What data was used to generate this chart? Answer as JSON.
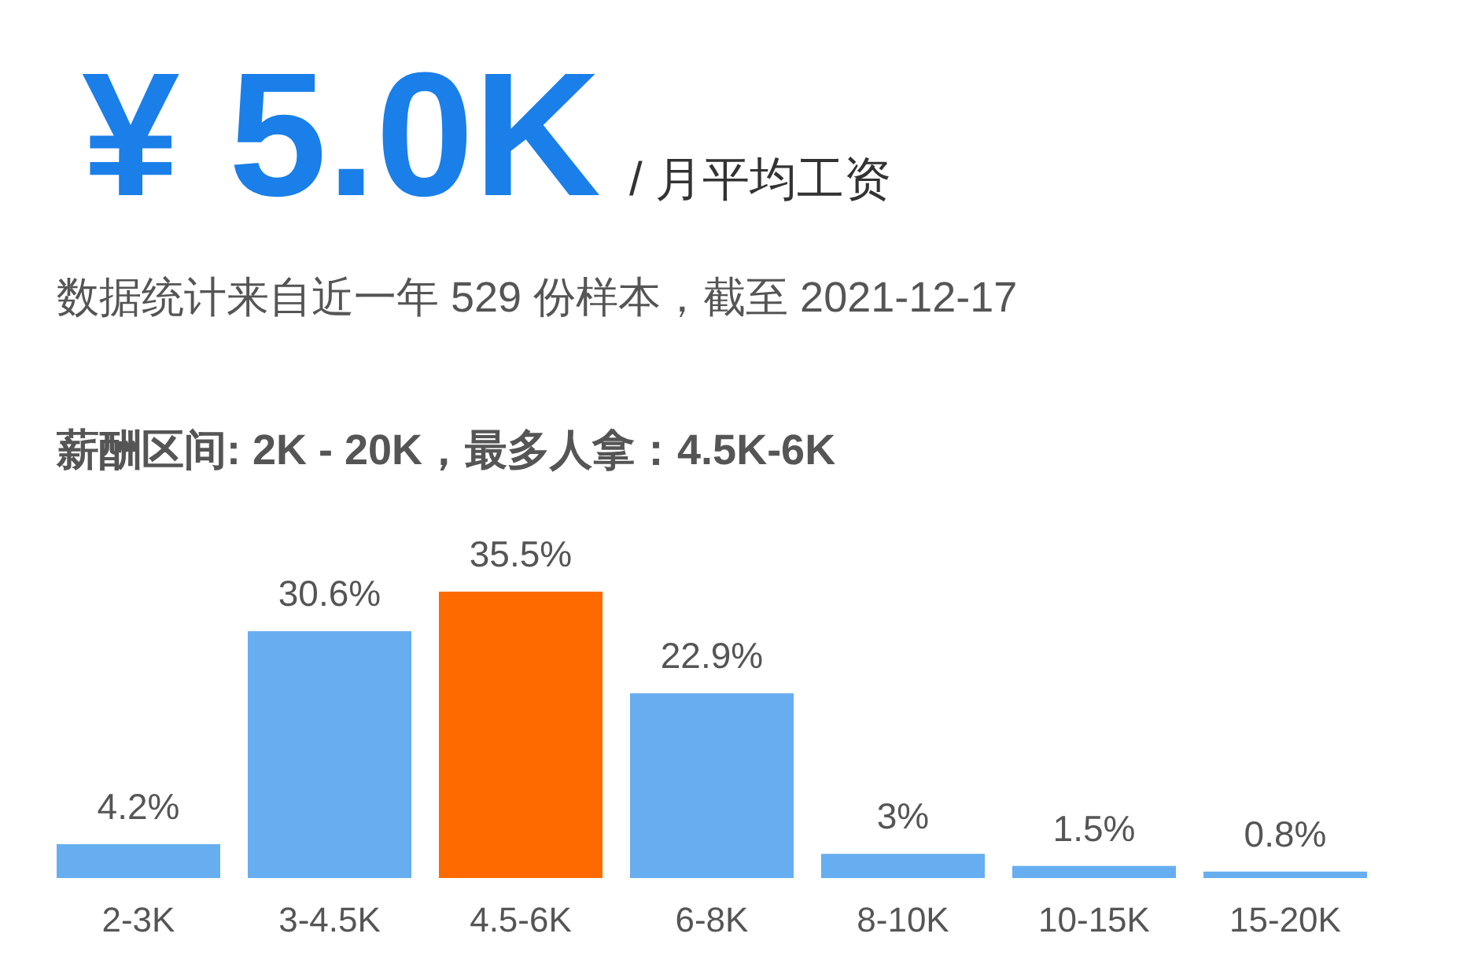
{
  "chart_data": {
    "type": "bar",
    "title": "¥ 5.0K",
    "subtitle": "/ 月平均工资",
    "annotations": [
      "数据统计来自近一年 529 份样本，截至 2021-12-17",
      "薪酬区间: 2K - 20K，最多人拿：4.5K-6K"
    ],
    "categories": [
      "2-3K",
      "3-4.5K",
      "4.5-6K",
      "6-8K",
      "8-10K",
      "10-15K",
      "15-20K"
    ],
    "values": [
      4.2,
      30.6,
      35.5,
      22.9,
      3,
      1.5,
      0.8
    ],
    "value_labels": [
      "4.2%",
      "30.6%",
      "35.5%",
      "22.9%",
      "3%",
      "1.5%",
      "0.8%"
    ],
    "colors": [
      "#66aef0",
      "#66aef0",
      "#ff6a00",
      "#66aef0",
      "#66aef0",
      "#66aef0",
      "#66aef0"
    ]
  }
}
